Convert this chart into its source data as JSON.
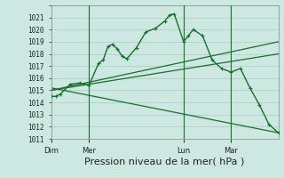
{
  "bg_color": "#cce8e0",
  "grid_color": "#aacccc",
  "line_color": "#1a6e2e",
  "ylim": [
    1011,
    1022
  ],
  "yticks": [
    1011,
    1012,
    1013,
    1014,
    1015,
    1016,
    1017,
    1018,
    1019,
    1020,
    1021
  ],
  "xlabel": "Pression niveau de la mer( hPa )",
  "xlabel_fontsize": 8,
  "day_labels": [
    "Dim",
    "Mer",
    "Lun",
    "Mar"
  ],
  "day_positions": [
    0,
    4,
    14,
    19
  ],
  "vline_positions": [
    4,
    14,
    19
  ],
  "main_x": [
    0,
    0.5,
    1,
    2,
    3,
    4,
    5,
    5.5,
    6,
    6.5,
    7,
    7.5,
    8,
    9,
    10,
    11,
    12,
    12.5,
    13,
    14,
    14.5,
    15,
    16,
    17,
    18,
    19,
    20,
    21,
    22,
    23,
    24
  ],
  "main_y": [
    1014.5,
    1014.5,
    1014.7,
    1015.5,
    1015.6,
    1015.4,
    1017.2,
    1017.5,
    1018.6,
    1018.8,
    1018.4,
    1017.8,
    1017.6,
    1018.5,
    1019.8,
    1020.1,
    1020.7,
    1021.2,
    1021.3,
    1019.0,
    1019.5,
    1020.0,
    1019.5,
    1017.5,
    1016.8,
    1016.5,
    1016.8,
    1015.2,
    1013.8,
    1012.2,
    1011.5
  ],
  "line1_x": [
    0,
    24
  ],
  "line1_y": [
    1015.0,
    1019.0
  ],
  "line2_x": [
    0,
    24
  ],
  "line2_y": [
    1015.0,
    1018.0
  ],
  "line3_x": [
    0,
    24
  ],
  "line3_y": [
    1015.2,
    1011.5
  ],
  "xlim": [
    0,
    24
  ]
}
